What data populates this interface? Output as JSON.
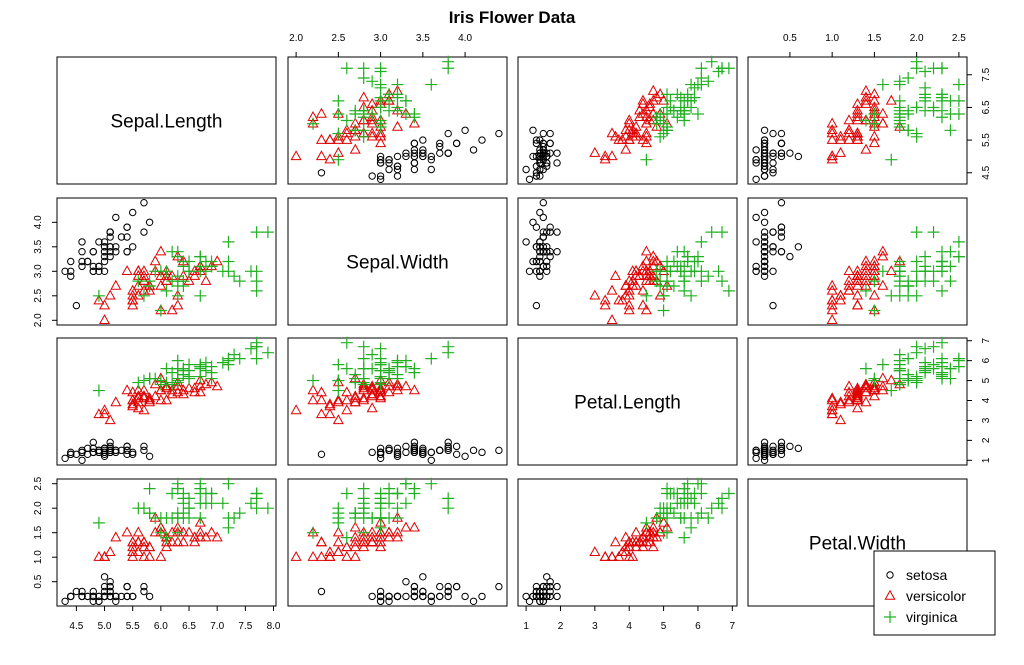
{
  "chart_data": {
    "type": "scatter",
    "title": "Iris Flower Data",
    "variables": [
      "Sepal.Length",
      "Sepal.Width",
      "Petal.Length",
      "Petal.Width"
    ],
    "ranges": {
      "Sepal.Length": [
        4.3,
        7.9
      ],
      "Sepal.Width": [
        2.0,
        4.4
      ],
      "Petal.Length": [
        1.0,
        6.9
      ],
      "Petal.Width": [
        0.1,
        2.5
      ]
    },
    "ticks": {
      "Sepal.Length": [
        "4.5",
        "5.0",
        "5.5",
        "6.0",
        "6.5",
        "7.0",
        "7.5",
        "8.0"
      ],
      "Sepal.Length_right": [
        "4.5",
        "5.5",
        "6.5",
        "7.5"
      ],
      "Sepal.Width": [
        "2.0",
        "2.5",
        "3.0",
        "3.5",
        "4.0"
      ],
      "Petal.Length": [
        "1",
        "2",
        "3",
        "4",
        "5",
        "6",
        "7"
      ],
      "Petal.Width": [
        "0.5",
        "1.0",
        "1.5",
        "2.0",
        "2.5"
      ]
    },
    "legend": {
      "position": "bottom-right",
      "entries": [
        {
          "name": "setosa",
          "symbol": "circle",
          "color": "#000000"
        },
        {
          "name": "versicolor",
          "symbol": "triangle",
          "color": "#DF0000"
        },
        {
          "name": "virginica",
          "symbol": "plus",
          "color": "#22B022"
        }
      ]
    },
    "series": [
      {
        "name": "setosa",
        "points": [
          [
            5.1,
            3.5,
            1.4,
            0.2
          ],
          [
            4.9,
            3.0,
            1.4,
            0.2
          ],
          [
            4.7,
            3.2,
            1.3,
            0.2
          ],
          [
            4.6,
            3.1,
            1.5,
            0.2
          ],
          [
            5.0,
            3.6,
            1.4,
            0.2
          ],
          [
            5.4,
            3.9,
            1.7,
            0.4
          ],
          [
            4.6,
            3.4,
            1.4,
            0.3
          ],
          [
            5.0,
            3.4,
            1.5,
            0.2
          ],
          [
            4.4,
            2.9,
            1.4,
            0.2
          ],
          [
            4.9,
            3.1,
            1.5,
            0.1
          ],
          [
            5.4,
            3.7,
            1.5,
            0.2
          ],
          [
            4.8,
            3.4,
            1.6,
            0.2
          ],
          [
            4.8,
            3.0,
            1.4,
            0.1
          ],
          [
            4.3,
            3.0,
            1.1,
            0.1
          ],
          [
            5.8,
            4.0,
            1.2,
            0.2
          ],
          [
            5.7,
            4.4,
            1.5,
            0.4
          ],
          [
            5.4,
            3.9,
            1.3,
            0.4
          ],
          [
            5.1,
            3.5,
            1.4,
            0.3
          ],
          [
            5.7,
            3.8,
            1.7,
            0.3
          ],
          [
            5.1,
            3.8,
            1.5,
            0.3
          ],
          [
            5.4,
            3.4,
            1.7,
            0.2
          ],
          [
            5.1,
            3.7,
            1.5,
            0.4
          ],
          [
            4.6,
            3.6,
            1.0,
            0.2
          ],
          [
            5.1,
            3.3,
            1.7,
            0.5
          ],
          [
            4.8,
            3.4,
            1.9,
            0.2
          ],
          [
            5.0,
            3.0,
            1.6,
            0.2
          ],
          [
            5.0,
            3.4,
            1.6,
            0.4
          ],
          [
            5.2,
            3.5,
            1.5,
            0.2
          ],
          [
            5.2,
            3.4,
            1.4,
            0.2
          ],
          [
            4.7,
            3.2,
            1.6,
            0.2
          ],
          [
            4.8,
            3.1,
            1.6,
            0.2
          ],
          [
            5.4,
            3.4,
            1.5,
            0.4
          ],
          [
            5.2,
            4.1,
            1.5,
            0.1
          ],
          [
            5.5,
            4.2,
            1.4,
            0.2
          ],
          [
            4.9,
            3.1,
            1.5,
            0.2
          ],
          [
            5.0,
            3.2,
            1.2,
            0.2
          ],
          [
            5.5,
            3.5,
            1.3,
            0.2
          ],
          [
            4.9,
            3.6,
            1.4,
            0.1
          ],
          [
            4.4,
            3.0,
            1.3,
            0.2
          ],
          [
            5.1,
            3.4,
            1.5,
            0.2
          ],
          [
            5.0,
            3.5,
            1.3,
            0.3
          ],
          [
            4.5,
            2.3,
            1.3,
            0.3
          ],
          [
            4.4,
            3.2,
            1.3,
            0.2
          ],
          [
            5.0,
            3.5,
            1.6,
            0.6
          ],
          [
            5.1,
            3.8,
            1.9,
            0.4
          ],
          [
            4.8,
            3.0,
            1.4,
            0.3
          ],
          [
            5.1,
            3.8,
            1.6,
            0.2
          ],
          [
            4.6,
            3.2,
            1.4,
            0.2
          ],
          [
            5.3,
            3.7,
            1.5,
            0.2
          ],
          [
            5.0,
            3.3,
            1.4,
            0.2
          ]
        ]
      },
      {
        "name": "versicolor",
        "points": [
          [
            7.0,
            3.2,
            4.7,
            1.4
          ],
          [
            6.4,
            3.2,
            4.5,
            1.5
          ],
          [
            6.9,
            3.1,
            4.9,
            1.5
          ],
          [
            5.5,
            2.3,
            4.0,
            1.3
          ],
          [
            6.5,
            2.8,
            4.6,
            1.5
          ],
          [
            5.7,
            2.8,
            4.5,
            1.3
          ],
          [
            6.3,
            3.3,
            4.7,
            1.6
          ],
          [
            4.9,
            2.4,
            3.3,
            1.0
          ],
          [
            6.6,
            2.9,
            4.6,
            1.3
          ],
          [
            5.2,
            2.7,
            3.9,
            1.4
          ],
          [
            5.0,
            2.0,
            3.5,
            1.0
          ],
          [
            5.9,
            3.0,
            4.2,
            1.5
          ],
          [
            6.0,
            2.2,
            4.0,
            1.0
          ],
          [
            6.1,
            2.9,
            4.7,
            1.4
          ],
          [
            5.6,
            2.9,
            3.6,
            1.3
          ],
          [
            6.7,
            3.1,
            4.4,
            1.4
          ],
          [
            5.6,
            3.0,
            4.5,
            1.5
          ],
          [
            5.8,
            2.7,
            4.1,
            1.0
          ],
          [
            6.2,
            2.2,
            4.5,
            1.5
          ],
          [
            5.6,
            2.5,
            3.9,
            1.1
          ],
          [
            5.9,
            3.2,
            4.8,
            1.8
          ],
          [
            6.1,
            2.8,
            4.0,
            1.3
          ],
          [
            6.3,
            2.5,
            4.9,
            1.5
          ],
          [
            6.1,
            2.8,
            4.7,
            1.2
          ],
          [
            6.4,
            2.9,
            4.3,
            1.3
          ],
          [
            6.6,
            3.0,
            4.4,
            1.4
          ],
          [
            6.8,
            2.8,
            4.8,
            1.4
          ],
          [
            6.7,
            3.0,
            5.0,
            1.7
          ],
          [
            6.0,
            2.9,
            4.5,
            1.5
          ],
          [
            5.7,
            2.6,
            3.5,
            1.0
          ],
          [
            5.5,
            2.4,
            3.8,
            1.1
          ],
          [
            5.5,
            2.4,
            3.7,
            1.0
          ],
          [
            5.8,
            2.7,
            3.9,
            1.2
          ],
          [
            6.0,
            2.7,
            5.1,
            1.6
          ],
          [
            5.4,
            3.0,
            4.5,
            1.5
          ],
          [
            6.0,
            3.4,
            4.5,
            1.6
          ],
          [
            6.7,
            3.1,
            4.7,
            1.5
          ],
          [
            6.3,
            2.3,
            4.4,
            1.3
          ],
          [
            5.6,
            3.0,
            4.1,
            1.3
          ],
          [
            5.5,
            2.5,
            4.0,
            1.3
          ],
          [
            5.5,
            2.6,
            4.4,
            1.2
          ],
          [
            6.1,
            3.0,
            4.6,
            1.4
          ],
          [
            5.8,
            2.6,
            4.0,
            1.2
          ],
          [
            5.0,
            2.3,
            3.3,
            1.0
          ],
          [
            5.6,
            2.7,
            4.2,
            1.3
          ],
          [
            5.7,
            3.0,
            4.2,
            1.2
          ],
          [
            5.7,
            2.9,
            4.2,
            1.3
          ],
          [
            6.2,
            2.9,
            4.3,
            1.3
          ],
          [
            5.1,
            2.5,
            3.0,
            1.1
          ],
          [
            5.7,
            2.8,
            4.1,
            1.3
          ]
        ]
      },
      {
        "name": "virginica",
        "points": [
          [
            6.3,
            3.3,
            6.0,
            2.5
          ],
          [
            5.8,
            2.7,
            5.1,
            1.9
          ],
          [
            7.1,
            3.0,
            5.9,
            2.1
          ],
          [
            6.3,
            2.9,
            5.6,
            1.8
          ],
          [
            6.5,
            3.0,
            5.8,
            2.2
          ],
          [
            7.6,
            3.0,
            6.6,
            2.1
          ],
          [
            4.9,
            2.5,
            4.5,
            1.7
          ],
          [
            7.3,
            2.9,
            6.3,
            1.8
          ],
          [
            6.7,
            2.5,
            5.8,
            1.8
          ],
          [
            7.2,
            3.6,
            6.1,
            2.5
          ],
          [
            6.5,
            3.2,
            5.1,
            2.0
          ],
          [
            6.4,
            2.7,
            5.3,
            1.9
          ],
          [
            6.8,
            3.0,
            5.5,
            2.1
          ],
          [
            5.7,
            2.5,
            5.0,
            2.0
          ],
          [
            5.8,
            2.8,
            5.1,
            2.4
          ],
          [
            6.4,
            3.2,
            5.3,
            2.3
          ],
          [
            6.5,
            3.0,
            5.5,
            1.8
          ],
          [
            7.7,
            3.8,
            6.7,
            2.2
          ],
          [
            7.7,
            2.6,
            6.9,
            2.3
          ],
          [
            6.0,
            2.2,
            5.0,
            1.5
          ],
          [
            6.9,
            3.2,
            5.7,
            2.3
          ],
          [
            5.6,
            2.8,
            4.9,
            2.0
          ],
          [
            7.7,
            2.8,
            6.7,
            2.0
          ],
          [
            6.3,
            2.7,
            4.9,
            1.8
          ],
          [
            6.7,
            3.3,
            5.7,
            2.1
          ],
          [
            7.2,
            3.2,
            6.0,
            1.8
          ],
          [
            6.2,
            2.8,
            4.8,
            1.8
          ],
          [
            6.1,
            3.0,
            4.9,
            1.8
          ],
          [
            6.4,
            2.8,
            5.6,
            2.1
          ],
          [
            7.2,
            3.0,
            5.8,
            1.6
          ],
          [
            7.4,
            2.8,
            6.1,
            1.9
          ],
          [
            7.9,
            3.8,
            6.4,
            2.0
          ],
          [
            6.4,
            2.8,
            5.6,
            2.2
          ],
          [
            6.3,
            2.8,
            5.1,
            1.5
          ],
          [
            6.1,
            2.6,
            5.6,
            1.4
          ],
          [
            7.7,
            3.0,
            6.1,
            2.3
          ],
          [
            6.3,
            3.4,
            5.6,
            2.4
          ],
          [
            6.4,
            3.1,
            5.5,
            1.8
          ],
          [
            6.0,
            3.0,
            4.8,
            1.8
          ],
          [
            6.9,
            3.1,
            5.4,
            2.1
          ],
          [
            6.7,
            3.1,
            5.6,
            2.4
          ],
          [
            6.9,
            3.1,
            5.1,
            2.3
          ],
          [
            5.8,
            2.7,
            5.1,
            1.9
          ],
          [
            6.8,
            3.2,
            5.9,
            2.3
          ],
          [
            6.7,
            3.3,
            5.7,
            2.5
          ],
          [
            6.7,
            3.0,
            5.2,
            2.3
          ],
          [
            6.3,
            2.5,
            5.0,
            1.9
          ],
          [
            6.5,
            3.0,
            5.2,
            2.0
          ],
          [
            6.2,
            3.4,
            5.4,
            2.3
          ],
          [
            5.9,
            3.0,
            5.1,
            1.8
          ]
        ]
      }
    ]
  }
}
